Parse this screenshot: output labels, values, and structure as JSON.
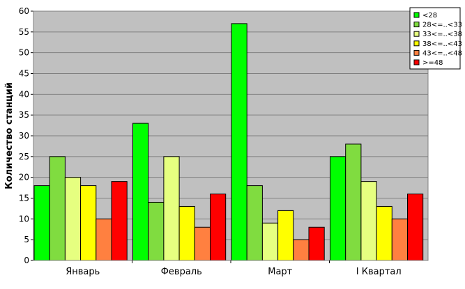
{
  "chart_data": {
    "type": "bar",
    "title": "",
    "xlabel": "",
    "ylabel": "Количество станций",
    "ylim": [
      0,
      60
    ],
    "yticks": [
      0,
      5,
      10,
      15,
      20,
      25,
      30,
      35,
      40,
      45,
      50,
      55,
      60
    ],
    "grid": true,
    "legend_position": "top-right",
    "background_color": "#C0C0C0",
    "categories": [
      "Январь",
      "Февраль",
      "Март",
      "I Квартал"
    ],
    "series": [
      {
        "name": "<28",
        "color": "#00FF00",
        "values": [
          18,
          33,
          57,
          25
        ]
      },
      {
        "name": "28<=..<33",
        "color": "#80DC40",
        "values": [
          25,
          14,
          18,
          28
        ]
      },
      {
        "name": "33<=..<38",
        "color": "#E6FF80",
        "values": [
          20,
          25,
          9,
          19
        ]
      },
      {
        "name": "38<=..<43",
        "color": "#FFFF00",
        "values": [
          18,
          13,
          12,
          13
        ]
      },
      {
        "name": "43<=..<48",
        "color": "#FF8040",
        "values": [
          10,
          8,
          5,
          10
        ]
      },
      {
        "name": ">=48",
        "color": "#FF0000",
        "values": [
          19,
          16,
          8,
          16
        ]
      }
    ]
  }
}
